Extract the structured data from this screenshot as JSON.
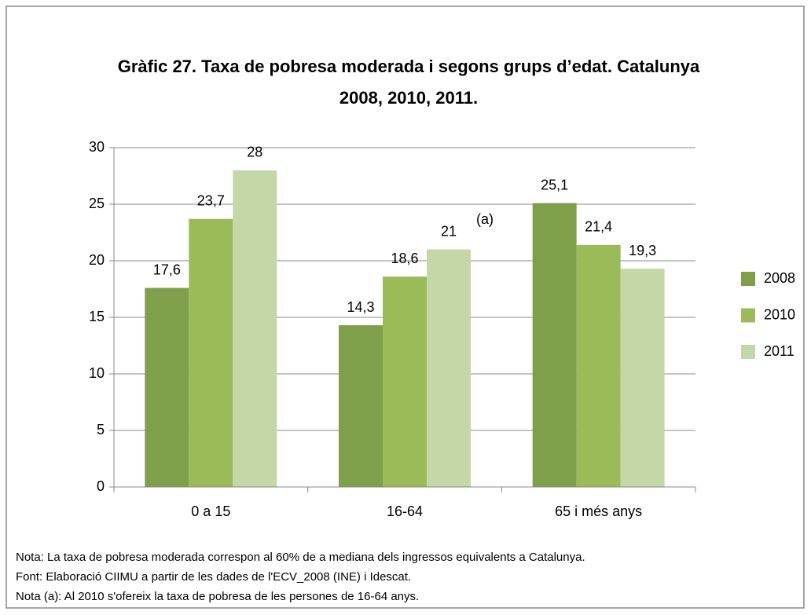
{
  "chart_data": {
    "type": "bar",
    "title_lines": [
      "Gràfic 27. Taxa de pobresa moderada i segons grups d’edat. Catalunya",
      "2008, 2010, 2011."
    ],
    "categories": [
      "0 a 15",
      "16-64",
      "65 i més anys"
    ],
    "series": [
      {
        "name": "2008",
        "color": "#7f9f4a",
        "values": [
          17.6,
          14.3,
          25.1
        ],
        "value_labels": [
          "17,6",
          "14,3",
          "25,1"
        ]
      },
      {
        "name": "2010",
        "color": "#9bbb59",
        "values": [
          23.7,
          18.6,
          21.4
        ],
        "value_labels": [
          "23,7",
          "18,6",
          "21,4"
        ]
      },
      {
        "name": "2011",
        "color": "#c4d7a9",
        "values": [
          28,
          21,
          19.3
        ],
        "value_labels": [
          "28",
          "21",
          "19,3"
        ]
      }
    ],
    "annotation": "(a)",
    "ylim": [
      0,
      30
    ],
    "yticks": [
      0,
      5,
      10,
      15,
      20,
      25,
      30
    ],
    "grid": true,
    "legend": "right",
    "notes": [
      "Nota: La taxa de pobresa moderada correspon al 60% de a mediana dels ingressos equivalents a Catalunya.",
      "Font: Elaboració CIIMU a partir de les dades de l'ECV_2008 (INE) i Idescat.",
      "Nota (a): Al 2010 s'ofereix la taxa de pobresa de les persones de 16-64 anys."
    ]
  }
}
